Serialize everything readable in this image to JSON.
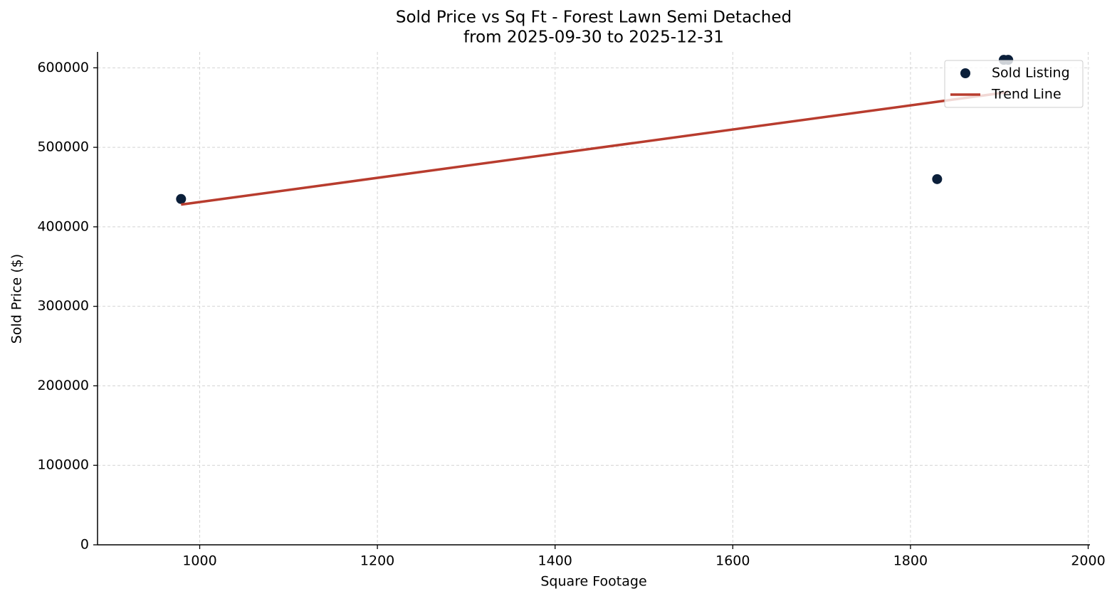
{
  "chart_data": {
    "type": "scatter",
    "title": "Sold Price vs Sq Ft - Forest Lawn Semi Detached",
    "subtitle": "from 2025-09-30 to 2025-12-31",
    "x_label": "Square Footage",
    "y_label": "Sold Price ($)",
    "xlim": [
      885,
      2002
    ],
    "ylim": [
      0,
      620000
    ],
    "xticks": [
      1000,
      1200,
      1400,
      1600,
      1800,
      2000
    ],
    "yticks": [
      0,
      100000,
      200000,
      300000,
      400000,
      500000,
      600000
    ],
    "grid": true,
    "legend": "upper right",
    "series": [
      {
        "name": "Sold Listing",
        "type": "scatter",
        "color": "#0b1f3a",
        "x": [
          979,
          1830,
          1905,
          1910
        ],
        "values": [
          435000,
          460000,
          610000,
          610000
        ]
      },
      {
        "name": "Trend Line",
        "type": "line",
        "color": "#b83c2e",
        "x": [
          979,
          1910
        ],
        "values": [
          428000,
          569500
        ]
      }
    ]
  }
}
